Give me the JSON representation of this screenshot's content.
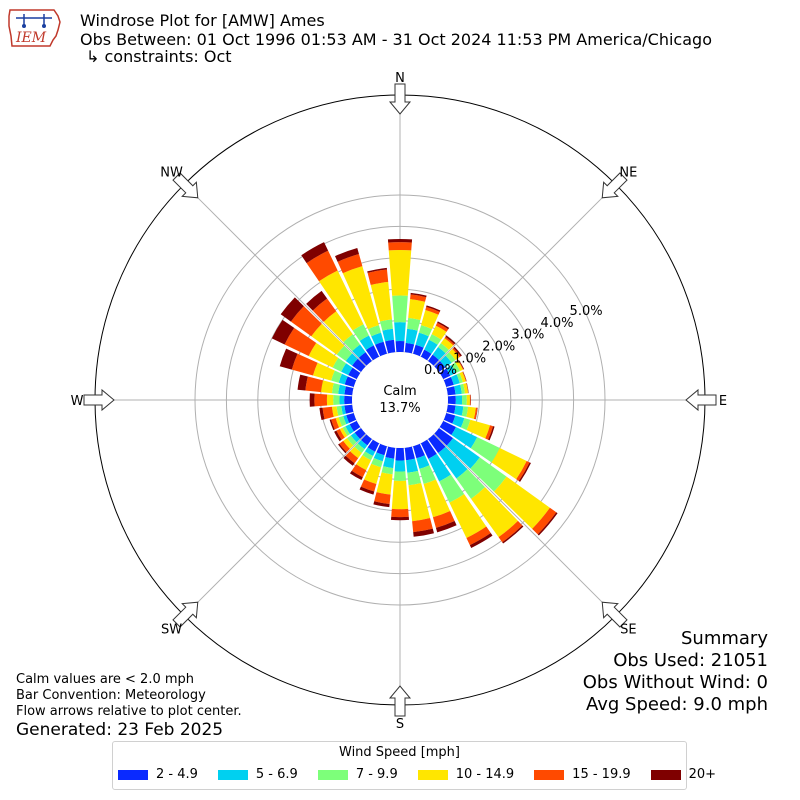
{
  "header": {
    "title": "Windrose Plot for [AMW] Ames",
    "obs_between": "Obs Between: 01 Oct 1996 01:53 AM - 31 Oct 2024 11:53 PM America/Chicago",
    "constraints": "↳ constraints: Oct"
  },
  "logo": {
    "text": "IEM"
  },
  "summary": {
    "heading": "Summary",
    "obs_used": "Obs Used: 21051",
    "obs_without_wind": "Obs Without Wind: 0",
    "avg_speed": "Avg Speed: 9.0 mph"
  },
  "notes": {
    "calm_note": "Calm values are < 2.0 mph",
    "bar_convention": "Bar Convention: Meteorology",
    "flow_note": "Flow arrows relative to plot center.",
    "generated": "Generated: 23 Feb 2025"
  },
  "legend": {
    "title": "Wind Speed [mph]",
    "items": [
      {
        "label": "2 - 4.9",
        "color": "#0a2aff"
      },
      {
        "label": "5 - 6.9",
        "color": "#00d0f0"
      },
      {
        "label": "7 - 9.9",
        "color": "#7dff7a"
      },
      {
        "label": "10 - 14.9",
        "color": "#ffe600"
      },
      {
        "label": "15 - 19.9",
        "color": "#ff4a00"
      },
      {
        "label": "20+",
        "color": "#7f0000"
      }
    ]
  },
  "chart_data": {
    "type": "windrose",
    "calm": {
      "label": "Calm",
      "value_label": "13.7%",
      "value": 13.7
    },
    "radial_tick_labels": [
      "0.0%",
      "1.0%",
      "2.0%",
      "3.0%",
      "4.0%",
      "5.0%"
    ],
    "radial_ticks": [
      0,
      1,
      2,
      3,
      4,
      5
    ],
    "compass_labels": [
      {
        "label": "N",
        "deg": 0
      },
      {
        "label": "NE",
        "deg": 45
      },
      {
        "label": "E",
        "deg": 90
      },
      {
        "label": "SE",
        "deg": 135
      },
      {
        "label": "S",
        "deg": 180
      },
      {
        "label": "SW",
        "deg": 225
      },
      {
        "label": "W",
        "deg": 270
      },
      {
        "label": "NW",
        "deg": 315
      }
    ],
    "speed_bins": [
      "2 - 4.9",
      "5 - 6.9",
      "7 - 9.9",
      "10 - 14.9",
      "15 - 19.9",
      "20+"
    ],
    "directions_deg": [
      0,
      10,
      20,
      30,
      40,
      50,
      60,
      70,
      80,
      90,
      100,
      110,
      120,
      130,
      140,
      150,
      160,
      170,
      180,
      190,
      200,
      210,
      220,
      230,
      240,
      250,
      260,
      270,
      280,
      290,
      300,
      310,
      320,
      330,
      340,
      350
    ],
    "cumulative_percent": [
      [
        0.35,
        0.95,
        1.8,
        3.25,
        3.5,
        3.6
      ],
      [
        0.3,
        0.75,
        1.1,
        1.7,
        1.85,
        1.9
      ],
      [
        0.3,
        0.7,
        0.95,
        1.45,
        1.55,
        1.6
      ],
      [
        0.25,
        0.6,
        0.8,
        1.1,
        1.2,
        1.25
      ],
      [
        0.25,
        0.55,
        0.7,
        0.9,
        0.95,
        1.0
      ],
      [
        0.25,
        0.5,
        0.65,
        0.8,
        0.85,
        0.9
      ],
      [
        0.25,
        0.45,
        0.6,
        0.7,
        0.72,
        0.74
      ],
      [
        0.25,
        0.45,
        0.55,
        0.65,
        0.67,
        0.68
      ],
      [
        0.25,
        0.45,
        0.55,
        0.65,
        0.66,
        0.67
      ],
      [
        0.25,
        0.45,
        0.6,
        0.7,
        0.72,
        0.73
      ],
      [
        0.25,
        0.5,
        0.65,
        0.9,
        0.95,
        0.96
      ],
      [
        0.3,
        0.6,
        0.8,
        1.45,
        1.55,
        1.6
      ],
      [
        0.45,
        1.2,
        2.0,
        2.95,
        3.05,
        3.1
      ],
      [
        0.55,
        1.6,
        2.65,
        4.35,
        4.6,
        4.65
      ],
      [
        0.55,
        1.55,
        2.35,
        3.85,
        4.05,
        4.1
      ],
      [
        0.55,
        1.35,
        2.1,
        3.35,
        3.6,
        3.7
      ],
      [
        0.4,
        0.75,
        1.25,
        2.35,
        2.7,
        2.85
      ],
      [
        0.4,
        0.8,
        1.2,
        2.35,
        2.7,
        2.85
      ],
      [
        0.4,
        0.75,
        1.05,
        1.95,
        2.2,
        2.3
      ],
      [
        0.35,
        0.65,
        0.85,
        1.5,
        1.8,
        1.9
      ],
      [
        0.3,
        0.5,
        0.7,
        1.25,
        1.5,
        1.6
      ],
      [
        0.3,
        0.45,
        0.6,
        0.95,
        1.2,
        1.3
      ],
      [
        0.25,
        0.4,
        0.55,
        0.75,
        0.95,
        1.05
      ],
      [
        0.25,
        0.4,
        0.55,
        0.7,
        0.85,
        0.9
      ],
      [
        0.25,
        0.4,
        0.5,
        0.6,
        0.72,
        0.8
      ],
      [
        0.25,
        0.35,
        0.5,
        0.6,
        0.75,
        0.8
      ],
      [
        0.25,
        0.35,
        0.5,
        0.65,
        0.95,
        1.05
      ],
      [
        0.25,
        0.4,
        0.6,
        0.8,
        1.2,
        1.35
      ],
      [
        0.25,
        0.45,
        0.65,
        1.0,
        1.5,
        1.75
      ],
      [
        0.3,
        0.5,
        0.75,
        1.35,
        2.05,
        2.45
      ],
      [
        0.3,
        0.55,
        0.85,
        1.7,
        2.55,
        3.0
      ],
      [
        0.35,
        0.6,
        0.95,
        1.95,
        2.75,
        3.15
      ],
      [
        0.35,
        0.65,
        1.05,
        1.95,
        2.45,
        2.75
      ],
      [
        0.4,
        0.75,
        1.15,
        3.05,
        3.75,
        4.05
      ],
      [
        0.4,
        0.7,
        0.95,
        2.9,
        3.3,
        3.5
      ],
      [
        0.4,
        0.75,
        1.05,
        2.25,
        2.65,
        2.7
      ]
    ]
  }
}
